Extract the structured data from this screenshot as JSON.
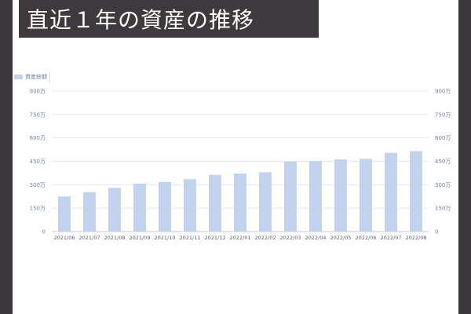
{
  "header": {
    "title": "直近１年の資産の推移"
  },
  "chart_data": {
    "type": "bar",
    "title": "直近１年の資産の推移",
    "categories": [
      "2021/06",
      "2021/07",
      "2021/08",
      "2021/09",
      "2021/10",
      "2021/11",
      "2021/12",
      "2022/01",
      "2022/02",
      "2022/03",
      "2022/04",
      "2022/05",
      "2022/06",
      "2022/07",
      "2022/08"
    ],
    "series": [
      {
        "name": "資産総額",
        "values": [
          225,
          252,
          280,
          307,
          318,
          336,
          363,
          372,
          380,
          448,
          452,
          462,
          466,
          504,
          515
        ],
        "color": "#c3d3ed"
      }
    ],
    "ylim": [
      0,
      900
    ],
    "yticks": [
      0,
      150,
      300,
      450,
      600,
      750,
      900
    ],
    "yticklabels": [
      "0",
      "150万",
      "300万",
      "450万",
      "600万",
      "750万",
      "900万"
    ],
    "unit": "万",
    "grid": true,
    "legend": "top-left",
    "xlabel": "",
    "ylabel": ""
  }
}
